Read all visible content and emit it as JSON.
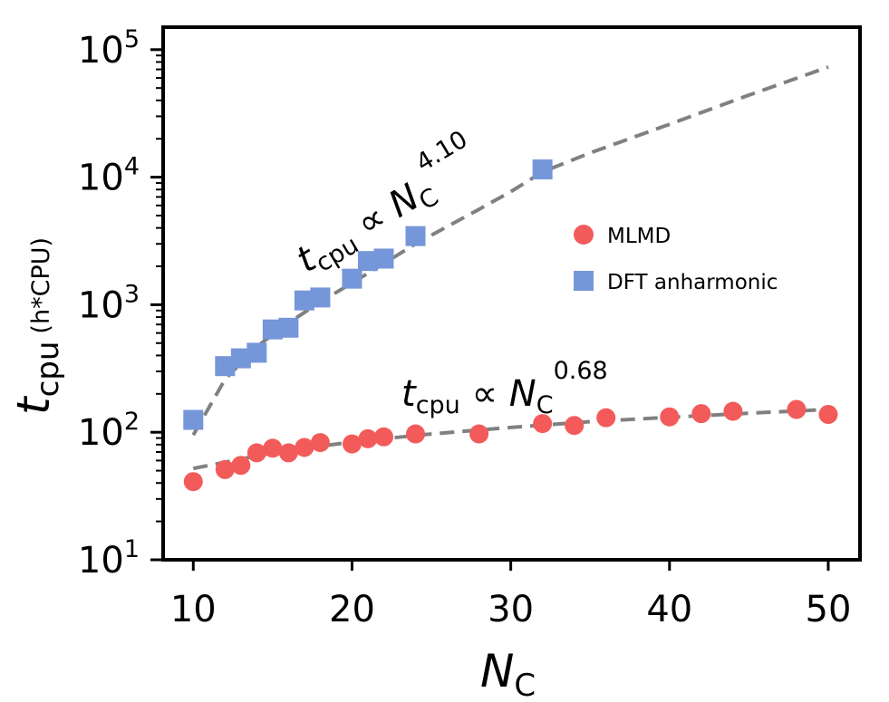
{
  "chart_data": {
    "type": "scatter",
    "xlabel": "N",
    "xlabel_sub": "C",
    "ylabel_main": "t",
    "ylabel_sub": "cpu",
    "ylabel_unit": "(h*CPU)",
    "xlim": [
      8.1,
      52
    ],
    "ylim": [
      10,
      150000
    ],
    "yscale": "log",
    "xticks": [
      10,
      20,
      30,
      40,
      50
    ],
    "yticks": [
      {
        "value": 10,
        "base": "10",
        "exp": "1"
      },
      {
        "value": 100,
        "base": "10",
        "exp": "2"
      },
      {
        "value": 1000,
        "base": "10",
        "exp": "3"
      },
      {
        "value": 10000,
        "base": "10",
        "exp": "4"
      },
      {
        "value": 100000,
        "base": "10",
        "exp": "5"
      }
    ],
    "legend_position": "right",
    "grid": false,
    "series": [
      {
        "name": "MLMD",
        "marker": "circle",
        "color": "#f35b5b",
        "x": [
          10,
          12,
          13,
          14,
          15,
          16,
          17,
          18,
          20,
          21,
          22,
          24,
          28,
          32,
          34,
          36,
          40,
          42,
          44,
          48,
          50
        ],
        "y": [
          41,
          51,
          55,
          69,
          75,
          69,
          76,
          83,
          81,
          89,
          92,
          97,
          97,
          117,
          113,
          130,
          132,
          140,
          146,
          151,
          138
        ]
      },
      {
        "name": "DFT anharmonic",
        "marker": "square",
        "color": "#7596d8",
        "x": [
          10,
          12,
          13,
          14,
          15,
          16,
          17,
          18,
          20,
          21,
          22,
          24,
          32
        ],
        "y": [
          125,
          330,
          380,
          420,
          640,
          660,
          1080,
          1140,
          1600,
          2200,
          2300,
          3450,
          11500
        ]
      }
    ],
    "fits": [
      {
        "fit_of": "MLMD",
        "color": "#808080",
        "x": [
          10,
          15,
          20,
          25,
          30,
          35,
          40,
          45,
          50
        ],
        "y": [
          52,
          69,
          84,
          97,
          109,
          121,
          131,
          141,
          151
        ]
      },
      {
        "fit_of": "DFT anharmonic",
        "color": "#808080",
        "x": [
          10,
          12,
          14,
          16,
          18,
          20,
          22,
          24,
          26,
          28,
          30,
          32,
          35,
          40,
          45,
          50
        ],
        "y": [
          95,
          260,
          470,
          720,
          1050,
          1480,
          2100,
          3000,
          4100,
          5600,
          7700,
          11000,
          15500,
          26000,
          44000,
          73000
        ]
      }
    ],
    "annotations": [
      {
        "id": "dft_law",
        "base": "t",
        "sub": "cpu",
        "mid": " ∝ N",
        "sub2": "C",
        "exp": "4.10"
      },
      {
        "id": "mlmd_law",
        "base": "t",
        "sub": "cpu",
        "mid": " ∝ N",
        "sub2": "C",
        "exp": "0.68"
      }
    ]
  }
}
